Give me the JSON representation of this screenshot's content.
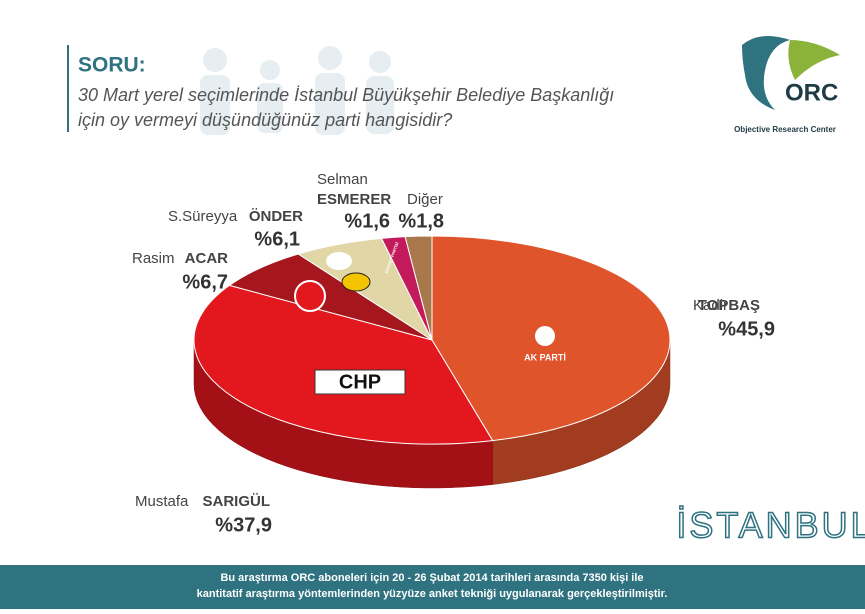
{
  "header": {
    "label": "SORU:",
    "question_lines": [
      "30 Mart yerel seçimlerinde İstanbul Büyükşehir Belediye Başkanlığı",
      "için oy vermeyi düşündüğünüz parti hangisidir?"
    ]
  },
  "logo": {
    "name": "ORC",
    "subtitle": "Objective Research Center"
  },
  "city": "İSTANBUL",
  "footer": [
    "Bu araştırma ORC aboneleri için 20 - 26 Şubat 2014 tarihleri arasında  7350 kişi ile",
    "kantitatif araştırma yöntemlerinden yüzyüze anket tekniği  uygulanarak gerçekleştirilmiştir."
  ],
  "chart_data": {
    "type": "pie",
    "first_names": [
      "Kadir",
      "Mustafa",
      "Rasim",
      "S.Süreyya",
      "Selman",
      null
    ],
    "categories": [
      "TOPBAŞ",
      "SARIGÜL",
      "ACAR",
      "ÖNDER",
      "ESMERER",
      "Diğer"
    ],
    "values": [
      45.9,
      37.9,
      6.7,
      6.1,
      1.6,
      1.8
    ],
    "value_labels": [
      "%45,9",
      "%37,9",
      "%6,7",
      "%6,1",
      "%1,6",
      "%1,8"
    ],
    "slice_logos": [
      "AK PARTİ",
      "CHP",
      null,
      null,
      "SAADET PARTİSİ",
      null
    ],
    "colors": [
      "#e0542c",
      "#e3181f",
      "#a5171d",
      "#e0d6a6",
      "#c21a5a",
      "#a8784a"
    ]
  }
}
